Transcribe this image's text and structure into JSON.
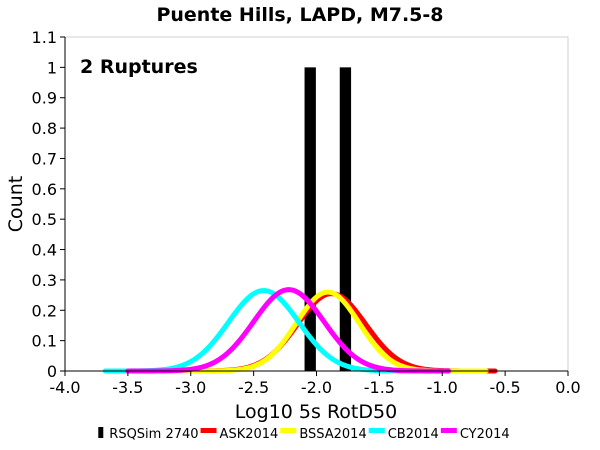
{
  "chart_data": {
    "type": "line",
    "title": "Puente Hills, LAPD, M7.5-8",
    "xlabel": "Log10 5s RotD50",
    "ylabel": "Count",
    "annotation": "2 Ruptures",
    "xlim": [
      -4.0,
      0.0
    ],
    "ylim": [
      0,
      1.1
    ],
    "xticks": [
      "-4.0",
      "-3.5",
      "-3.0",
      "-2.5",
      "-2.0",
      "-1.5",
      "-1.0",
      "-0.5",
      "0.0"
    ],
    "yticks": [
      "0",
      "0.1",
      "0.2",
      "0.3",
      "0.4",
      "0.5",
      "0.6",
      "0.7",
      "0.8",
      "0.9",
      "1",
      "1.1"
    ],
    "grid": false,
    "legend_position": "bottom",
    "histogram": {
      "name": "RSQSim 2740",
      "color": "#000000",
      "bars": [
        {
          "x": -2.05,
          "value": 1
        },
        {
          "x": -1.77,
          "value": 1
        }
      ],
      "bar_width": 0.09
    },
    "series": [
      {
        "name": "ASK2014",
        "color": "#ff0000",
        "mean": -1.88,
        "sigma": 0.27,
        "peak": 0.255,
        "xmin": -3.35,
        "xmax": -0.58
      },
      {
        "name": "BSSA2014",
        "color": "#ffff00",
        "mean": -1.91,
        "sigma": 0.25,
        "peak": 0.26,
        "xmin": -3.33,
        "xmax": -0.65
      },
      {
        "name": "CB2014",
        "color": "#00ffff",
        "mean": -2.42,
        "sigma": 0.28,
        "peak": 0.265,
        "xmin": -3.68,
        "xmax": -1.18
      },
      {
        "name": "CY2014",
        "color": "#ff00ff",
        "mean": -2.22,
        "sigma": 0.28,
        "peak": 0.268,
        "xmin": -3.5,
        "xmax": -0.95
      }
    ]
  }
}
